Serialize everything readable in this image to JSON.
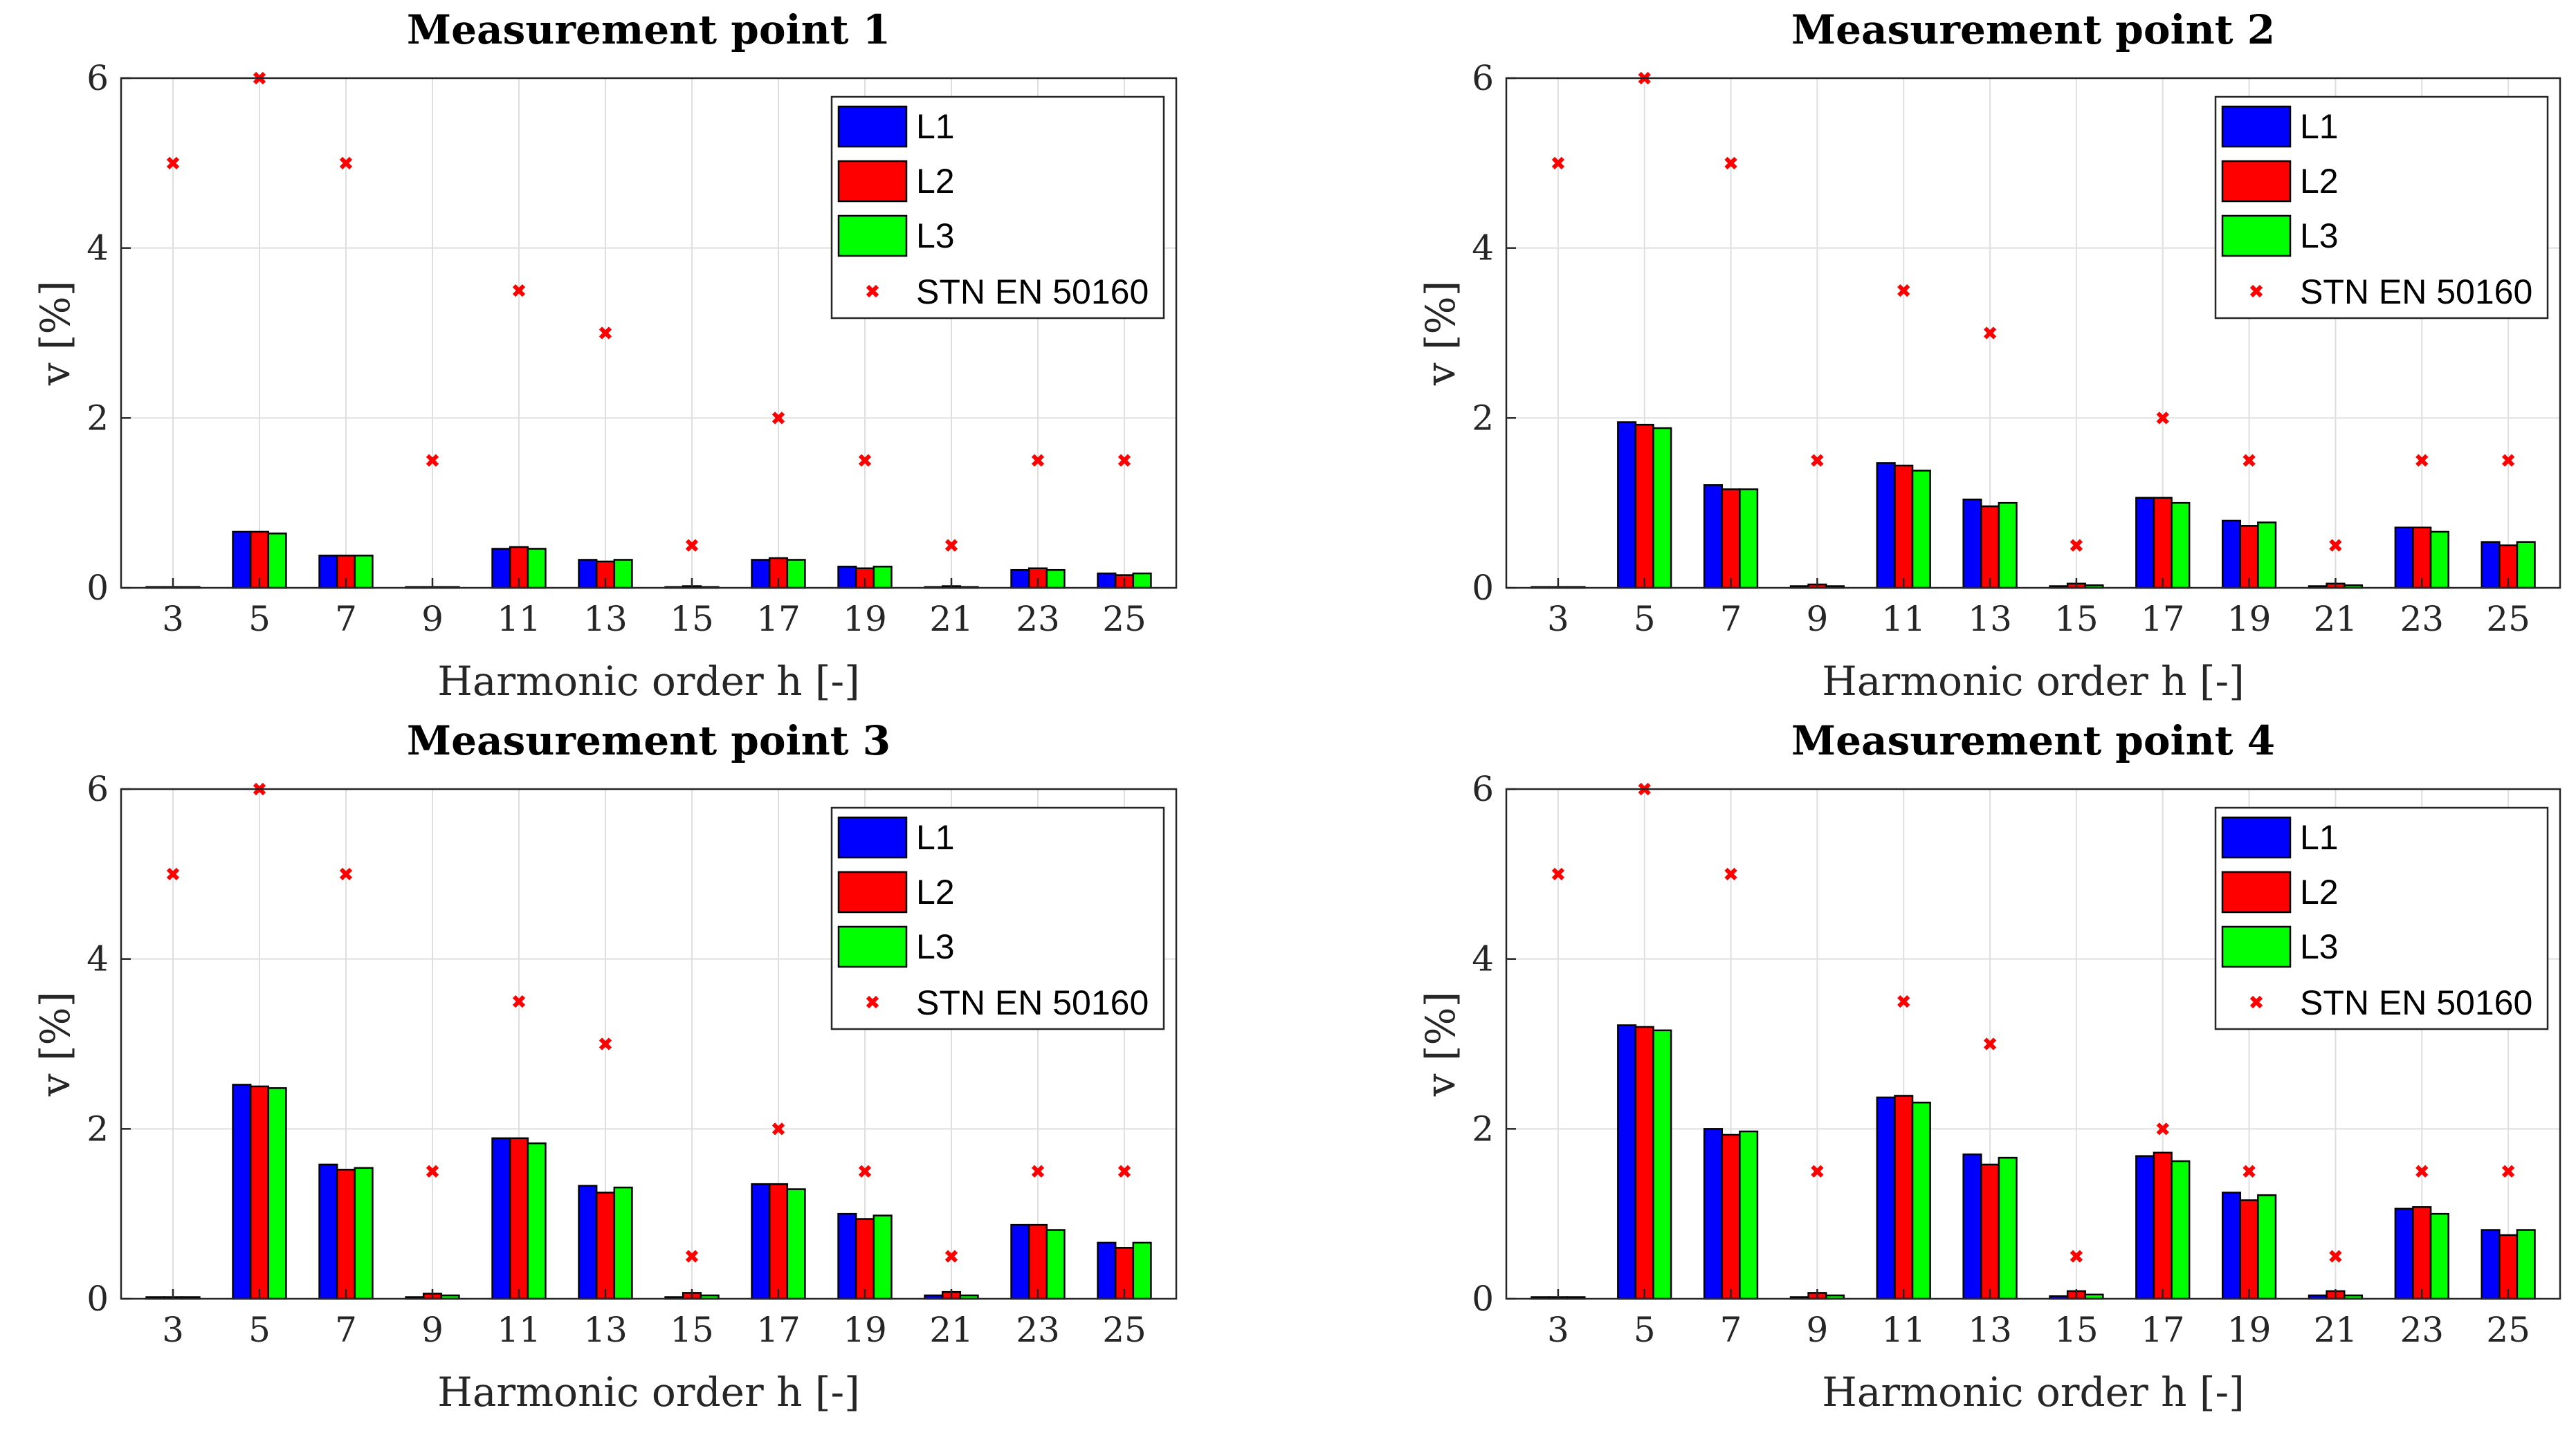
{
  "figure": {
    "colors": {
      "L1": "#0000ff",
      "L2": "#ff0000",
      "L3": "#00ff00",
      "STN EN 50160": "#ff0000"
    },
    "legend_position": "top-right"
  },
  "chart_data": [
    {
      "type": "bar",
      "title": "Measurement point 1",
      "xlabel": "Harmonic order h [-]",
      "ylabel": "v [%]",
      "ylim": [
        0,
        6
      ],
      "yticks": [
        "0",
        "2",
        "4",
        "6"
      ],
      "grid": true,
      "categories": [
        "3",
        "5",
        "7",
        "9",
        "11",
        "13",
        "15",
        "17",
        "19",
        "21",
        "23",
        "25"
      ],
      "series": [
        {
          "name": "L1",
          "values": [
            0.01,
            0.66,
            0.38,
            0.01,
            0.46,
            0.33,
            0.01,
            0.33,
            0.25,
            0.01,
            0.21,
            0.17
          ]
        },
        {
          "name": "L2",
          "values": [
            0.01,
            0.66,
            0.38,
            0.01,
            0.48,
            0.31,
            0.02,
            0.35,
            0.23,
            0.02,
            0.23,
            0.15
          ]
        },
        {
          "name": "L3",
          "values": [
            0.01,
            0.64,
            0.38,
            0.01,
            0.46,
            0.33,
            0.01,
            0.33,
            0.25,
            0.01,
            0.21,
            0.17
          ]
        }
      ],
      "limit": {
        "name": "STN EN 50160",
        "values": [
          5,
          6,
          5,
          1.5,
          3.5,
          3,
          0.5,
          2,
          1.5,
          0.5,
          1.5,
          1.5
        ]
      }
    },
    {
      "type": "bar",
      "title": "Measurement point 2",
      "xlabel": "Harmonic order h [-]",
      "ylabel": "v [%]",
      "ylim": [
        0,
        6
      ],
      "yticks": [
        "0",
        "2",
        "4",
        "6"
      ],
      "grid": true,
      "categories": [
        "3",
        "5",
        "7",
        "9",
        "11",
        "13",
        "15",
        "17",
        "19",
        "21",
        "23",
        "25"
      ],
      "series": [
        {
          "name": "L1",
          "values": [
            0.01,
            1.95,
            1.21,
            0.02,
            1.47,
            1.04,
            0.02,
            1.06,
            0.79,
            0.02,
            0.71,
            0.54
          ]
        },
        {
          "name": "L2",
          "values": [
            0.01,
            1.92,
            1.16,
            0.04,
            1.44,
            0.96,
            0.05,
            1.06,
            0.73,
            0.05,
            0.71,
            0.5
          ]
        },
        {
          "name": "L3",
          "values": [
            0.01,
            1.88,
            1.16,
            0.02,
            1.38,
            1.0,
            0.03,
            1.0,
            0.77,
            0.03,
            0.66,
            0.54
          ]
        }
      ],
      "limit": {
        "name": "STN EN 50160",
        "values": [
          5,
          6,
          5,
          1.5,
          3.5,
          3,
          0.5,
          2,
          1.5,
          0.5,
          1.5,
          1.5
        ]
      }
    },
    {
      "type": "bar",
      "title": "Measurement point 3",
      "xlabel": "Harmonic order h [-]",
      "ylabel": "v [%]",
      "ylim": [
        0,
        6
      ],
      "yticks": [
        "0",
        "2",
        "4",
        "6"
      ],
      "grid": true,
      "categories": [
        "3",
        "5",
        "7",
        "9",
        "11",
        "13",
        "15",
        "17",
        "19",
        "21",
        "23",
        "25"
      ],
      "series": [
        {
          "name": "L1",
          "values": [
            0.02,
            2.52,
            1.58,
            0.02,
            1.89,
            1.33,
            0.02,
            1.35,
            1.0,
            0.04,
            0.87,
            0.66
          ]
        },
        {
          "name": "L2",
          "values": [
            0.02,
            2.5,
            1.52,
            0.06,
            1.89,
            1.25,
            0.07,
            1.35,
            0.94,
            0.08,
            0.87,
            0.6
          ]
        },
        {
          "name": "L3",
          "values": [
            0.02,
            2.48,
            1.54,
            0.04,
            1.83,
            1.31,
            0.04,
            1.29,
            0.98,
            0.04,
            0.81,
            0.66
          ]
        }
      ],
      "limit": {
        "name": "STN EN 50160",
        "values": [
          5,
          6,
          5,
          1.5,
          3.5,
          3,
          0.5,
          2,
          1.5,
          0.5,
          1.5,
          1.5
        ]
      }
    },
    {
      "type": "bar",
      "title": "Measurement point 4",
      "xlabel": "Harmonic order h [-]",
      "ylabel": "v [%]",
      "ylim": [
        0,
        6
      ],
      "yticks": [
        "0",
        "2",
        "4",
        "6"
      ],
      "grid": true,
      "categories": [
        "3",
        "5",
        "7",
        "9",
        "11",
        "13",
        "15",
        "17",
        "19",
        "21",
        "23",
        "25"
      ],
      "series": [
        {
          "name": "L1",
          "values": [
            0.02,
            3.22,
            2.0,
            0.02,
            2.37,
            1.7,
            0.03,
            1.68,
            1.25,
            0.04,
            1.06,
            0.81
          ]
        },
        {
          "name": "L2",
          "values": [
            0.02,
            3.2,
            1.93,
            0.07,
            2.39,
            1.58,
            0.09,
            1.72,
            1.16,
            0.09,
            1.08,
            0.75
          ]
        },
        {
          "name": "L3",
          "values": [
            0.02,
            3.16,
            1.97,
            0.04,
            2.31,
            1.66,
            0.05,
            1.62,
            1.22,
            0.04,
            1.0,
            0.81
          ]
        }
      ],
      "limit": {
        "name": "STN EN 50160",
        "values": [
          5,
          6,
          5,
          1.5,
          3.5,
          3,
          0.5,
          2,
          1.5,
          0.5,
          1.5,
          1.5
        ]
      }
    }
  ]
}
